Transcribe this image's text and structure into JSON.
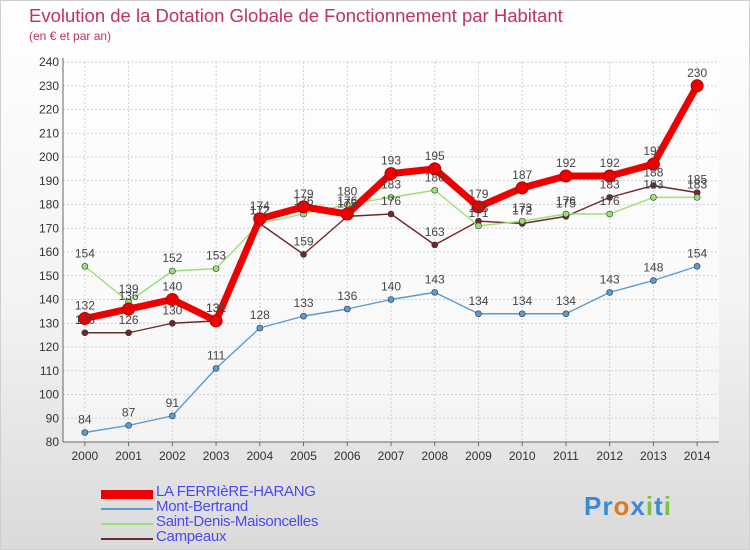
{
  "title": "Evolution de la Dotation Globale de Fonctionnement par Habitant",
  "subtitle": "(en € et par an)",
  "logo": {
    "letters": [
      "P",
      "r",
      "o",
      "x",
      "i",
      "t",
      "i"
    ],
    "colors": [
      "#3a8ad8",
      "#3a8ad8",
      "#e07a20",
      "#3a8ad8",
      "#7cc04a",
      "#3a8ad8",
      "#7cc04a"
    ]
  },
  "colors": {
    "LA FERRIèRE-HARANG": "#ee0000",
    "Mont-Bertrand": "#5b9bd0",
    "Saint-Denis-Maisoncelles": "#99e077",
    "Campeaux": "#6e2a2a"
  },
  "chart_data": {
    "type": "line",
    "title": "Evolution de la Dotation Globale de Fonctionnement par Habitant",
    "subtitle": "(en € et par an)",
    "xlabel": "",
    "ylabel": "",
    "ylim": [
      80,
      240
    ],
    "y_ticks": [
      80,
      90,
      100,
      110,
      120,
      130,
      140,
      150,
      160,
      170,
      180,
      190,
      200,
      210,
      220,
      230,
      240
    ],
    "grid": true,
    "legend_position": "bottom-left",
    "x": [
      "2000",
      "2001",
      "2002",
      "2003",
      "2004",
      "2005",
      "2006",
      "2007",
      "2008",
      "2009",
      "2010",
      "2011",
      "2012",
      "2013",
      "2014"
    ],
    "series": [
      {
        "name": "LA FERRIèRE-HARANG",
        "values": [
          132,
          136,
          140,
          131,
          174,
          179,
          176,
          193,
          195,
          179,
          187,
          192,
          192,
          197,
          230
        ]
      },
      {
        "name": "Mont-Bertrand",
        "values": [
          84,
          87,
          91,
          111,
          128,
          133,
          136,
          140,
          143,
          134,
          134,
          134,
          143,
          148,
          154
        ]
      },
      {
        "name": "Saint-Denis-Maisoncelles",
        "values": [
          154,
          139,
          152,
          153,
          172,
          176,
          180,
          183,
          186,
          171,
          173,
          176,
          176,
          183,
          183
        ]
      },
      {
        "name": "Campeaux",
        "values": [
          126,
          126,
          130,
          131,
          172,
          159,
          175,
          176,
          163,
          173,
          172,
          175,
          183,
          188,
          185
        ]
      }
    ]
  }
}
